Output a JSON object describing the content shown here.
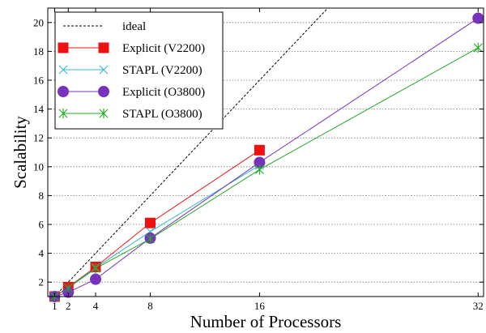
{
  "chart_data": {
    "type": "line",
    "title": "",
    "xlabel": "Number of Processors",
    "ylabel": "Scalability",
    "xlim": [
      0.5,
      32.4
    ],
    "ylim": [
      1,
      21
    ],
    "x_ticks": [
      1,
      2,
      4,
      8,
      16,
      32
    ],
    "y_ticks": [
      2,
      4,
      6,
      8,
      10,
      12,
      14,
      16,
      18,
      20
    ],
    "grid": "horizontal dotted",
    "legend_position": "top-left",
    "series": [
      {
        "name": "ideal",
        "color": "#000000",
        "style": "dashed",
        "marker": "none",
        "x": [
          1,
          32
        ],
        "y": [
          1,
          32
        ]
      },
      {
        "name": "Explicit (V2200)",
        "color": "#ee1111",
        "style": "solid",
        "marker": "square",
        "x": [
          1,
          2,
          4,
          8,
          16
        ],
        "y": [
          1.0,
          1.65,
          3.05,
          6.1,
          11.15
        ]
      },
      {
        "name": "STAPL (V2200)",
        "color": "#33bbcc",
        "style": "solid",
        "marker": "x",
        "x": [
          1,
          2,
          4,
          8,
          16
        ],
        "y": [
          1.0,
          1.6,
          3.0,
          5.5,
          10.1
        ]
      },
      {
        "name": "Explicit (O3800)",
        "color": "#7733bb",
        "style": "solid",
        "marker": "circle",
        "x": [
          1,
          2,
          4,
          8,
          16,
          32
        ],
        "y": [
          1.0,
          1.3,
          2.2,
          5.05,
          10.3,
          20.3
        ]
      },
      {
        "name": "STAPL (O3800)",
        "color": "#22aa22",
        "style": "solid",
        "marker": "asterisk",
        "x": [
          1,
          2,
          4,
          8,
          16,
          32
        ],
        "y": [
          1.0,
          1.6,
          2.95,
          5.0,
          9.8,
          18.25
        ]
      }
    ]
  }
}
